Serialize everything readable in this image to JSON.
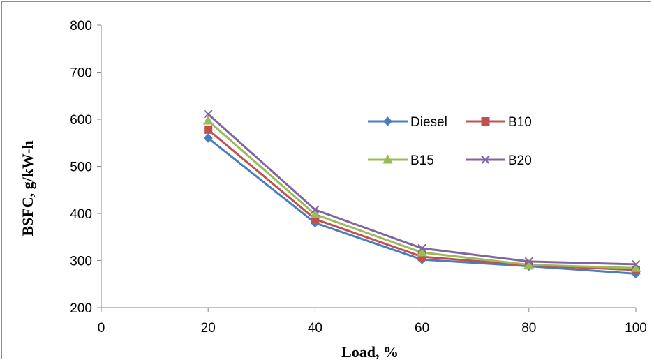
{
  "chart_data": {
    "type": "line",
    "title": "",
    "xlabel": "Load, %",
    "ylabel": "BSFC, g/kW-h",
    "xlim": [
      0,
      100
    ],
    "ylim": [
      200,
      800
    ],
    "x_ticks": [
      0,
      20,
      40,
      60,
      80,
      100
    ],
    "y_ticks": [
      200,
      300,
      400,
      500,
      600,
      700,
      800
    ],
    "grid": false,
    "legend_position": "center-right",
    "x": [
      20,
      40,
      60,
      80,
      100
    ],
    "series": [
      {
        "name": "Diesel",
        "values": [
          560,
          380,
          302,
          288,
          272
        ],
        "color": "#4a7dbf",
        "marker": "diamond"
      },
      {
        "name": "B10",
        "values": [
          578,
          388,
          308,
          290,
          280
        ],
        "color": "#c0504d",
        "marker": "square"
      },
      {
        "name": "B15",
        "values": [
          597,
          398,
          317,
          291,
          284
        ],
        "color": "#9bbb59",
        "marker": "triangle"
      },
      {
        "name": "B20",
        "values": [
          611,
          408,
          326,
          298,
          292
        ],
        "color": "#8064a2",
        "marker": "x"
      }
    ]
  }
}
